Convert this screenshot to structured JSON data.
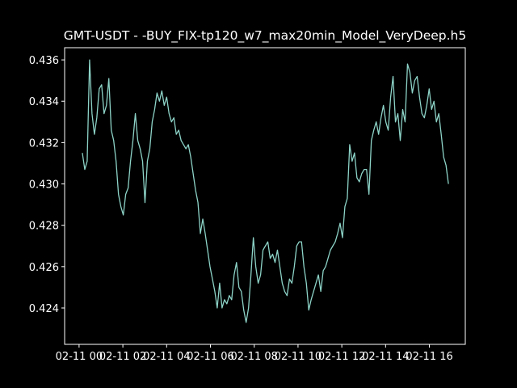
{
  "chart_data": {
    "type": "line",
    "title": "GMT-USDT - -BUY_FIX-tp120_w7_max20min_Model_VeryDeep.h5",
    "color": "#8dd3c7",
    "x": [
      0.15,
      0.26,
      0.37,
      0.48,
      0.59,
      0.7,
      0.81,
      0.92,
      1.03,
      1.14,
      1.25,
      1.36,
      1.47,
      1.58,
      1.69,
      1.8,
      1.91,
      2.02,
      2.13,
      2.24,
      2.35,
      2.46,
      2.57,
      2.68,
      2.79,
      2.9,
      3.01,
      3.12,
      3.23,
      3.34,
      3.45,
      3.56,
      3.67,
      3.78,
      3.89,
      4.0,
      4.11,
      4.22,
      4.33,
      4.44,
      4.55,
      4.66,
      4.77,
      4.88,
      4.99,
      5.1,
      5.21,
      5.32,
      5.43,
      5.54,
      5.65,
      5.76,
      5.87,
      5.98,
      6.09,
      6.2,
      6.31,
      6.42,
      6.53,
      6.64,
      6.75,
      6.86,
      6.97,
      7.08,
      7.19,
      7.3,
      7.41,
      7.52,
      7.63,
      7.74,
      7.85,
      7.96,
      8.07,
      8.18,
      8.29,
      8.4,
      8.51,
      8.62,
      8.73,
      8.84,
      8.95,
      9.06,
      9.17,
      9.28,
      9.39,
      9.5,
      9.61,
      9.72,
      9.83,
      9.94,
      10.05,
      10.16,
      10.27,
      10.38,
      10.49,
      10.6,
      10.71,
      10.82,
      10.93,
      11.04,
      11.15,
      11.26,
      11.37,
      11.48,
      11.59,
      11.7,
      11.81,
      11.92,
      12.03,
      12.14,
      12.25,
      12.36,
      12.47,
      12.58,
      12.69,
      12.8,
      12.91,
      13.02,
      13.13,
      13.24,
      13.35,
      13.46,
      13.57,
      13.68,
      13.79,
      13.9,
      14.01,
      14.12,
      14.23,
      14.34,
      14.45,
      14.56,
      14.67,
      14.78,
      14.89,
      15.0,
      15.11,
      15.22,
      15.33,
      15.44,
      15.55,
      15.66,
      15.77,
      15.88,
      15.99,
      16.1,
      16.21,
      16.32,
      16.43,
      16.54,
      16.65,
      16.76,
      16.87
    ],
    "values": [
      0.4315,
      0.4307,
      0.4311,
      0.436,
      0.4334,
      0.4324,
      0.4332,
      0.4346,
      0.4348,
      0.4334,
      0.4338,
      0.4351,
      0.4326,
      0.4321,
      0.4311,
      0.4295,
      0.4289,
      0.4285,
      0.4295,
      0.4298,
      0.4311,
      0.4321,
      0.4334,
      0.4321,
      0.4317,
      0.4311,
      0.4291,
      0.4311,
      0.4317,
      0.433,
      0.4336,
      0.4344,
      0.434,
      0.4345,
      0.4338,
      0.4342,
      0.4334,
      0.433,
      0.4332,
      0.4324,
      0.4326,
      0.4321,
      0.4319,
      0.4317,
      0.4319,
      0.4313,
      0.4305,
      0.4297,
      0.4291,
      0.4276,
      0.4283,
      0.4276,
      0.4268,
      0.426,
      0.4254,
      0.4248,
      0.424,
      0.4252,
      0.424,
      0.4244,
      0.4242,
      0.4246,
      0.4244,
      0.4256,
      0.4262,
      0.425,
      0.4248,
      0.4239,
      0.4233,
      0.424,
      0.4256,
      0.4274,
      0.426,
      0.4252,
      0.4256,
      0.4268,
      0.427,
      0.4272,
      0.4264,
      0.4266,
      0.4262,
      0.4268,
      0.426,
      0.4252,
      0.4248,
      0.4246,
      0.4254,
      0.4252,
      0.426,
      0.427,
      0.4272,
      0.4272,
      0.426,
      0.4252,
      0.4239,
      0.4244,
      0.4248,
      0.4252,
      0.4256,
      0.4248,
      0.4258,
      0.426,
      0.4264,
      0.4268,
      0.427,
      0.4272,
      0.4276,
      0.4281,
      0.4274,
      0.4289,
      0.4293,
      0.4319,
      0.4311,
      0.4315,
      0.4303,
      0.4301,
      0.4305,
      0.4307,
      0.4307,
      0.4295,
      0.4321,
      0.4326,
      0.433,
      0.4324,
      0.4332,
      0.4338,
      0.433,
      0.4326,
      0.4342,
      0.4352,
      0.433,
      0.4334,
      0.4321,
      0.4336,
      0.433,
      0.4358,
      0.4354,
      0.4344,
      0.435,
      0.4352,
      0.4342,
      0.4334,
      0.4332,
      0.4338,
      0.4346,
      0.4336,
      0.434,
      0.433,
      0.4334,
      0.4324,
      0.4313,
      0.4309,
      0.43
    ],
    "xlim": [
      -0.66,
      17.64
    ],
    "xticks": [
      {
        "value": 0,
        "label": "02-11 00"
      },
      {
        "value": 2,
        "label": "02-11 02"
      },
      {
        "value": 4,
        "label": "02-11 04"
      },
      {
        "value": 6,
        "label": "02-11 06"
      },
      {
        "value": 8,
        "label": "02-11 08"
      },
      {
        "value": 10,
        "label": "02-11 10"
      },
      {
        "value": 12,
        "label": "02-11 12"
      },
      {
        "value": 14,
        "label": "02-11 14"
      },
      {
        "value": 16,
        "label": "02-11 16"
      }
    ],
    "ylim": [
      0.42224,
      0.43659
    ],
    "yticks": [
      0.424,
      0.426,
      0.428,
      {
        "value": 0.43,
        "label": "0.430"
      },
      0.432,
      0.434,
      0.436
    ]
  }
}
